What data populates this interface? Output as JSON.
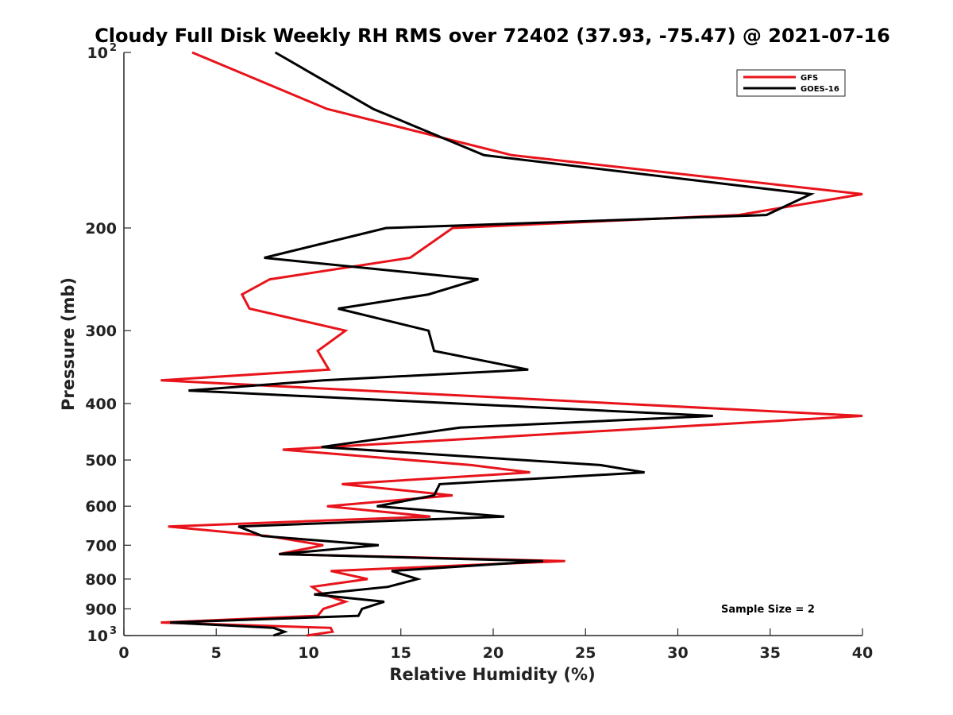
{
  "chart_data": {
    "type": "line",
    "title": "Cloudy Full Disk Weekly RH RMS over 72402 (37.93, -75.47) @ 2021-07-16",
    "xlabel": "Relative Humidity (%)",
    "ylabel": "Pressure (mb)",
    "xlim": [
      0,
      40
    ],
    "ylim": [
      100,
      1000
    ],
    "y_scale": "log",
    "y_reversed": true,
    "grid": false,
    "legend_position": "top-right",
    "x_ticks": [
      "0",
      "5",
      "10",
      "15",
      "20",
      "25",
      "30",
      "35",
      "40"
    ],
    "x_tick_values": [
      0,
      5,
      10,
      15,
      20,
      25,
      30,
      35,
      40
    ],
    "y_ticks": [
      {
        "value": 100,
        "base": "10",
        "exp": "2"
      },
      {
        "value": 200,
        "label": "200"
      },
      {
        "value": 300,
        "label": "300"
      },
      {
        "value": 400,
        "label": "400"
      },
      {
        "value": 500,
        "label": "500"
      },
      {
        "value": 600,
        "label": "600"
      },
      {
        "value": 700,
        "label": "700"
      },
      {
        "value": 800,
        "label": "800"
      },
      {
        "value": 900,
        "label": "900"
      },
      {
        "value": 1000,
        "base": "10",
        "exp": "3"
      }
    ],
    "annotation": "Sample Size = 2",
    "series": [
      {
        "name": "GFS",
        "color": "#e8141b",
        "points": [
          [
            3.7,
            100
          ],
          [
            11.0,
            125
          ],
          [
            21.0,
            150
          ],
          [
            40.0,
            175
          ],
          [
            33.3,
            190
          ],
          [
            17.8,
            200
          ],
          [
            15.5,
            225
          ],
          [
            7.9,
            245
          ],
          [
            6.4,
            260
          ],
          [
            6.8,
            275
          ],
          [
            12.0,
            300
          ],
          [
            10.5,
            325
          ],
          [
            11.1,
            350
          ],
          [
            2.0,
            365
          ],
          [
            40.0,
            420
          ],
          [
            8.6,
            480
          ],
          [
            18.8,
            510
          ],
          [
            22.0,
            525
          ],
          [
            11.8,
            550
          ],
          [
            17.8,
            575
          ],
          [
            11.0,
            600
          ],
          [
            16.6,
            625
          ],
          [
            2.4,
            650
          ],
          [
            7.8,
            675
          ],
          [
            10.8,
            700
          ],
          [
            8.4,
            725
          ],
          [
            23.9,
            745
          ],
          [
            11.2,
            775
          ],
          [
            13.2,
            800
          ],
          [
            10.2,
            825
          ],
          [
            10.8,
            850
          ],
          [
            12.0,
            875
          ],
          [
            10.8,
            900
          ],
          [
            10.5,
            925
          ],
          [
            2.0,
            950
          ],
          [
            11.2,
            970
          ],
          [
            11.3,
            985
          ],
          [
            9.9,
            1000
          ]
        ]
      },
      {
        "name": "GOES-16",
        "color": "#000000",
        "points": [
          [
            8.2,
            100
          ],
          [
            13.5,
            125
          ],
          [
            19.5,
            150
          ],
          [
            37.2,
            175
          ],
          [
            34.8,
            190
          ],
          [
            14.2,
            200
          ],
          [
            7.6,
            225
          ],
          [
            19.2,
            245
          ],
          [
            16.5,
            260
          ],
          [
            11.6,
            275
          ],
          [
            16.5,
            300
          ],
          [
            16.8,
            325
          ],
          [
            21.9,
            350
          ],
          [
            10.8,
            365
          ],
          [
            3.5,
            380
          ],
          [
            31.9,
            420
          ],
          [
            18.2,
            440
          ],
          [
            10.7,
            475
          ],
          [
            25.8,
            510
          ],
          [
            28.2,
            525
          ],
          [
            17.1,
            550
          ],
          [
            16.8,
            575
          ],
          [
            13.7,
            600
          ],
          [
            20.6,
            625
          ],
          [
            6.2,
            650
          ],
          [
            7.5,
            675
          ],
          [
            13.8,
            700
          ],
          [
            8.4,
            725
          ],
          [
            22.7,
            745
          ],
          [
            14.5,
            775
          ],
          [
            15.9,
            800
          ],
          [
            14.3,
            825
          ],
          [
            10.3,
            850
          ],
          [
            14.1,
            875
          ],
          [
            12.9,
            900
          ],
          [
            12.7,
            925
          ],
          [
            2.5,
            950
          ],
          [
            8.1,
            970
          ],
          [
            8.7,
            985
          ],
          [
            8.1,
            1000
          ]
        ]
      }
    ]
  }
}
